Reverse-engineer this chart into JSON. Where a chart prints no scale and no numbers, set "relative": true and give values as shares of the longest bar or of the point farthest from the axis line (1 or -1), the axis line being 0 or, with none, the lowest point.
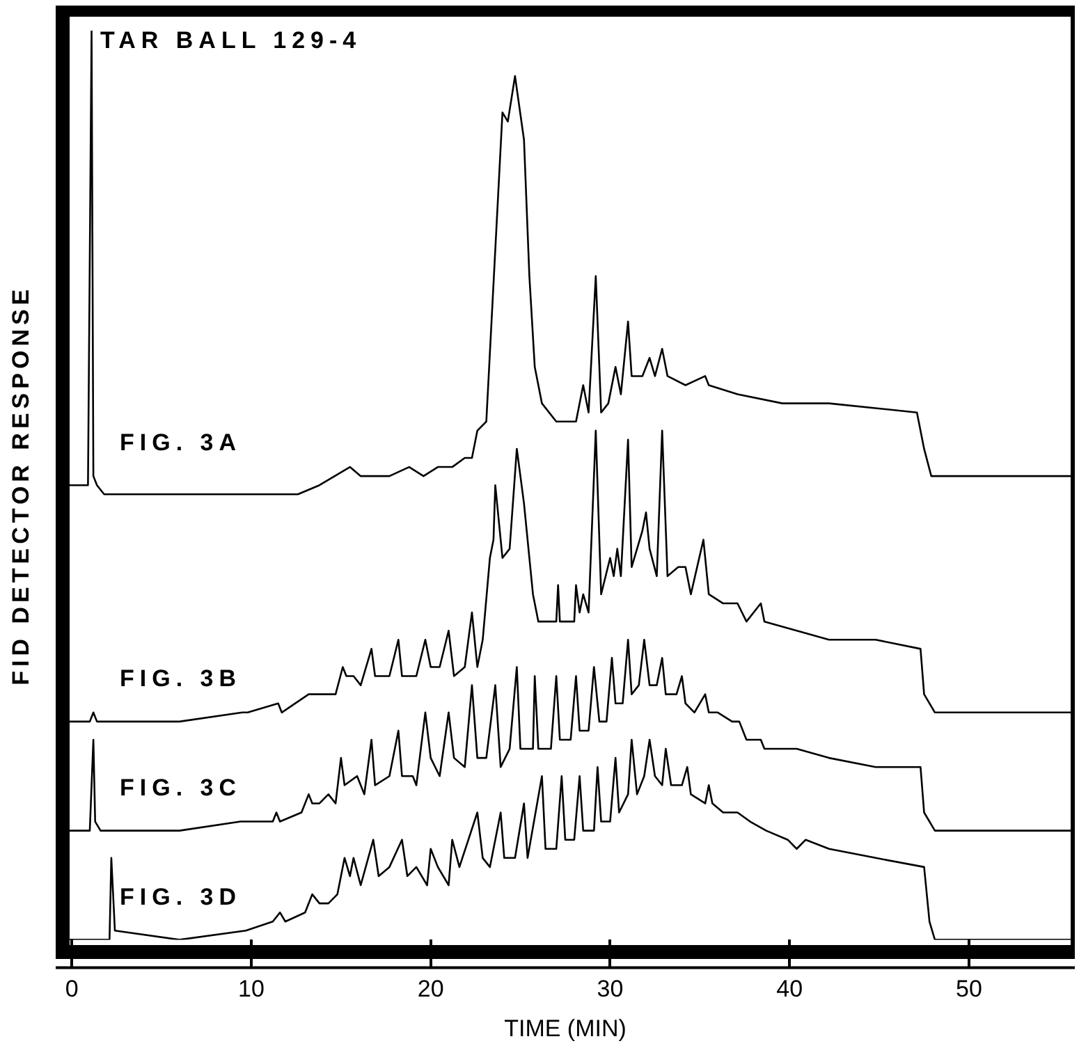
{
  "chart_data": {
    "type": "line",
    "title": "TAR BALL 129-4",
    "xlabel": "TIME (MIN)",
    "ylabel": "FID DETECTOR RESPONSE",
    "relative": true,
    "xlim": [
      -0.9,
      55.9
    ],
    "xticks": [
      0,
      10,
      20,
      30,
      40,
      50
    ],
    "series": [
      {
        "name": "FIG. 3A",
        "color": "#000000",
        "x": [
          -0.9,
          0.9,
          1.1,
          1.2,
          1.4,
          1.8,
          7.6,
          11.5,
          12.6,
          13.8,
          15.5,
          16.1,
          17.7,
          18.8,
          19.6,
          20.4,
          21.2,
          21.9,
          22.3,
          22.6,
          23.1,
          24.0,
          24.3,
          24.7,
          25.2,
          25.5,
          25.8,
          26.2,
          27.0,
          27.5,
          28.1,
          28.5,
          28.8,
          29.2,
          29.5,
          29.9,
          30.3,
          30.6,
          31.0,
          31.2,
          31.8,
          32.2,
          32.5,
          32.9,
          33.2,
          34.2,
          35.3,
          35.5,
          37.1,
          39.6,
          42.2,
          47.1,
          47.5,
          47.9,
          48.7,
          55.9
        ],
        "values": [
          0.5,
          0.5,
          1.0,
          0.51,
          0.5,
          0.49,
          0.49,
          0.49,
          0.49,
          0.5,
          0.52,
          0.51,
          0.51,
          0.52,
          0.51,
          0.52,
          0.52,
          0.53,
          0.53,
          0.56,
          0.57,
          0.91,
          0.9,
          0.95,
          0.88,
          0.73,
          0.63,
          0.59,
          0.57,
          0.57,
          0.57,
          0.61,
          0.58,
          0.73,
          0.58,
          0.59,
          0.63,
          0.6,
          0.68,
          0.62,
          0.62,
          0.64,
          0.62,
          0.65,
          0.62,
          0.61,
          0.62,
          0.61,
          0.6,
          0.59,
          0.59,
          0.58,
          0.54,
          0.51,
          0.51,
          0.51
        ]
      },
      {
        "name": "FIG. 3B",
        "color": "#000000",
        "x": [
          -0.9,
          1.0,
          1.2,
          1.4,
          6.0,
          9.5,
          9.8,
          11.5,
          11.7,
          13.2,
          13.6,
          14.7,
          15.1,
          15.3,
          15.7,
          16.1,
          16.7,
          16.9,
          17.7,
          18.2,
          18.4,
          19.2,
          19.7,
          20.0,
          20.5,
          21.0,
          21.3,
          21.9,
          22.3,
          22.6,
          22.9,
          23.3,
          23.5,
          23.6,
          24.0,
          24.4,
          24.8,
          25.2,
          25.7,
          26.0,
          26.4,
          26.7,
          27.0,
          27.1,
          27.2,
          28.0,
          28.1,
          28.3,
          28.5,
          28.8,
          29.2,
          29.5,
          30.0,
          30.2,
          30.4,
          30.6,
          31.0,
          31.2,
          31.8,
          32.0,
          32.2,
          32.6,
          32.9,
          33.2,
          33.8,
          34.2,
          34.5,
          35.2,
          35.5,
          36.3,
          37.1,
          37.6,
          38.4,
          38.6,
          40.4,
          42.2,
          44.8,
          47.3,
          47.5,
          48.1,
          55.9
        ],
        "values": [
          0.24,
          0.24,
          0.25,
          0.24,
          0.24,
          0.25,
          0.25,
          0.26,
          0.25,
          0.27,
          0.27,
          0.27,
          0.3,
          0.29,
          0.29,
          0.28,
          0.32,
          0.29,
          0.29,
          0.33,
          0.29,
          0.29,
          0.33,
          0.3,
          0.3,
          0.34,
          0.29,
          0.3,
          0.36,
          0.3,
          0.33,
          0.42,
          0.44,
          0.5,
          0.42,
          0.43,
          0.54,
          0.48,
          0.38,
          0.35,
          0.35,
          0.35,
          0.35,
          0.39,
          0.35,
          0.35,
          0.39,
          0.36,
          0.38,
          0.36,
          0.56,
          0.38,
          0.42,
          0.4,
          0.43,
          0.4,
          0.55,
          0.41,
          0.45,
          0.47,
          0.43,
          0.4,
          0.56,
          0.4,
          0.41,
          0.41,
          0.38,
          0.44,
          0.38,
          0.37,
          0.37,
          0.35,
          0.37,
          0.35,
          0.34,
          0.33,
          0.33,
          0.32,
          0.27,
          0.25,
          0.25
        ]
      },
      {
        "name": "FIG. 3C",
        "color": "#000000",
        "x": [
          -0.9,
          1.0,
          1.2,
          1.3,
          1.6,
          6.0,
          9.4,
          11.2,
          11.4,
          11.6,
          12.8,
          13.2,
          13.4,
          13.8,
          14.3,
          14.7,
          15.0,
          15.2,
          15.9,
          16.3,
          16.7,
          16.9,
          17.7,
          18.2,
          18.4,
          19.0,
          19.2,
          19.7,
          20.0,
          20.5,
          21.0,
          21.3,
          21.9,
          22.3,
          22.6,
          23.1,
          23.6,
          23.9,
          24.4,
          24.8,
          25.0,
          25.7,
          25.8,
          26.0,
          26.7,
          27.0,
          27.2,
          27.8,
          28.1,
          28.3,
          28.8,
          29.1,
          29.4,
          29.8,
          30.1,
          30.3,
          30.7,
          31.0,
          31.2,
          31.6,
          31.9,
          32.2,
          32.6,
          32.9,
          33.1,
          33.7,
          34.0,
          34.2,
          34.7,
          35.3,
          35.5,
          36.0,
          36.8,
          37.2,
          37.6,
          38.4,
          38.6,
          40.4,
          42.2,
          44.8,
          47.3,
          47.5,
          48.1,
          55.9
        ],
        "values": [
          0.12,
          0.12,
          0.22,
          0.13,
          0.12,
          0.12,
          0.13,
          0.13,
          0.14,
          0.13,
          0.14,
          0.16,
          0.15,
          0.15,
          0.16,
          0.15,
          0.2,
          0.17,
          0.18,
          0.16,
          0.22,
          0.17,
          0.18,
          0.23,
          0.18,
          0.18,
          0.17,
          0.25,
          0.2,
          0.18,
          0.25,
          0.2,
          0.19,
          0.28,
          0.2,
          0.2,
          0.28,
          0.19,
          0.21,
          0.3,
          0.21,
          0.21,
          0.29,
          0.21,
          0.21,
          0.29,
          0.22,
          0.22,
          0.29,
          0.23,
          0.23,
          0.3,
          0.24,
          0.24,
          0.31,
          0.26,
          0.26,
          0.33,
          0.27,
          0.28,
          0.33,
          0.28,
          0.28,
          0.31,
          0.27,
          0.27,
          0.29,
          0.26,
          0.25,
          0.27,
          0.25,
          0.25,
          0.24,
          0.24,
          0.22,
          0.22,
          0.21,
          0.21,
          0.2,
          0.19,
          0.19,
          0.14,
          0.12,
          0.12
        ]
      },
      {
        "name": "FIG. 3D",
        "color": "#000000",
        "x": [
          -0.9,
          2.1,
          2.2,
          2.4,
          6.0,
          9.7,
          11.2,
          11.6,
          11.9,
          13.0,
          13.4,
          13.8,
          14.3,
          14.8,
          15.2,
          15.5,
          15.7,
          16.1,
          16.8,
          17.1,
          17.7,
          18.4,
          18.7,
          19.2,
          19.8,
          20.0,
          20.4,
          21.0,
          21.2,
          21.6,
          22.6,
          22.9,
          23.3,
          23.9,
          24.1,
          24.7,
          25.2,
          25.4,
          26.2,
          26.4,
          27.0,
          27.3,
          27.5,
          28.0,
          28.3,
          28.5,
          29.1,
          29.3,
          29.5,
          30.0,
          30.3,
          30.5,
          31.0,
          31.2,
          31.5,
          31.9,
          32.2,
          32.5,
          32.9,
          33.1,
          33.4,
          34.0,
          34.3,
          34.5,
          35.3,
          35.5,
          35.7,
          36.3,
          37.1,
          37.8,
          38.7,
          39.9,
          40.4,
          40.9,
          42.2,
          44.8,
          47.5,
          47.8,
          48.1,
          55.9
        ],
        "values": [
          0,
          0,
          0.09,
          0.01,
          0,
          0.01,
          0.02,
          0.03,
          0.02,
          0.03,
          0.05,
          0.04,
          0.04,
          0.05,
          0.09,
          0.07,
          0.09,
          0.06,
          0.11,
          0.07,
          0.08,
          0.11,
          0.07,
          0.08,
          0.06,
          0.1,
          0.08,
          0.06,
          0.11,
          0.08,
          0.14,
          0.09,
          0.08,
          0.14,
          0.09,
          0.09,
          0.15,
          0.09,
          0.18,
          0.1,
          0.1,
          0.18,
          0.11,
          0.11,
          0.18,
          0.12,
          0.12,
          0.19,
          0.13,
          0.13,
          0.2,
          0.14,
          0.16,
          0.22,
          0.16,
          0.18,
          0.22,
          0.18,
          0.17,
          0.21,
          0.17,
          0.17,
          0.19,
          0.16,
          0.15,
          0.17,
          0.15,
          0.14,
          0.14,
          0.13,
          0.12,
          0.11,
          0.1,
          0.11,
          0.1,
          0.09,
          0.08,
          0.02,
          0,
          0
        ]
      }
    ]
  }
}
